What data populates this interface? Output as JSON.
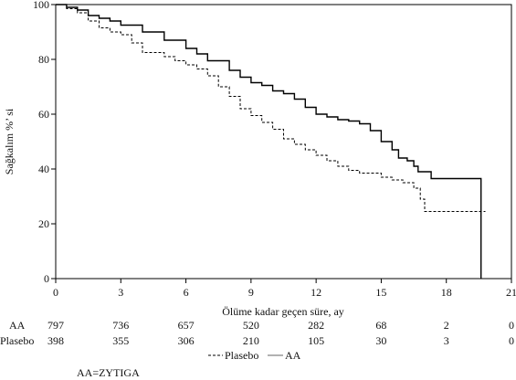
{
  "chart_data": {
    "type": "line",
    "title": "",
    "xlabel": "Ölüme kadar geçen süre, ay",
    "ylabel": "Sağkalım %’ si",
    "xlim": [
      0,
      21
    ],
    "ylim": [
      0,
      100
    ],
    "x_ticks": [
      "0",
      "3",
      "6",
      "9",
      "12",
      "15",
      "18",
      "21"
    ],
    "y_ticks": [
      "0",
      "20",
      "40",
      "60",
      "80",
      "100"
    ],
    "grid": false,
    "series": [
      {
        "name": "AA",
        "line_style": "solid",
        "color": "#000000",
        "points": [
          [
            0,
            100
          ],
          [
            0.5,
            99
          ],
          [
            1,
            98
          ],
          [
            1.5,
            96
          ],
          [
            2,
            95
          ],
          [
            2.5,
            94
          ],
          [
            3,
            92.5
          ],
          [
            4,
            90
          ],
          [
            5,
            87
          ],
          [
            6,
            84
          ],
          [
            6.5,
            82
          ],
          [
            7,
            79.5
          ],
          [
            8,
            76
          ],
          [
            8.5,
            73.5
          ],
          [
            9,
            71.5
          ],
          [
            9.5,
            70.5
          ],
          [
            10,
            68.5
          ],
          [
            10.5,
            67.5
          ],
          [
            11,
            65.5
          ],
          [
            11.5,
            62.5
          ],
          [
            12,
            60
          ],
          [
            12.5,
            59
          ],
          [
            13,
            58
          ],
          [
            13.5,
            57.5
          ],
          [
            14,
            56.5
          ],
          [
            14.5,
            54
          ],
          [
            15,
            50
          ],
          [
            15.5,
            47
          ],
          [
            15.8,
            44
          ],
          [
            16.2,
            43
          ],
          [
            16.5,
            41
          ],
          [
            16.7,
            39
          ],
          [
            17.3,
            39
          ],
          [
            17.3,
            36.5
          ],
          [
            19.6,
            36.5
          ],
          [
            19.6,
            0
          ]
        ]
      },
      {
        "name": "Plasebo",
        "line_style": "dashed",
        "color": "#000000",
        "points": [
          [
            0,
            100
          ],
          [
            0.5,
            98.5
          ],
          [
            1,
            97
          ],
          [
            1.5,
            94
          ],
          [
            2,
            91.5
          ],
          [
            2.5,
            90
          ],
          [
            3,
            89
          ],
          [
            3.5,
            86
          ],
          [
            4,
            82.5
          ],
          [
            5,
            81
          ],
          [
            5.5,
            79.5
          ],
          [
            6,
            78
          ],
          [
            6.5,
            76.5
          ],
          [
            7,
            74
          ],
          [
            7.5,
            70
          ],
          [
            8,
            66.5
          ],
          [
            8.5,
            62
          ],
          [
            9,
            59.5
          ],
          [
            9.5,
            57
          ],
          [
            10,
            54.5
          ],
          [
            10.5,
            51
          ],
          [
            11,
            49
          ],
          [
            11.5,
            47
          ],
          [
            12,
            45
          ],
          [
            12.5,
            43
          ],
          [
            13,
            41
          ],
          [
            13.5,
            39.5
          ],
          [
            14,
            38.5
          ],
          [
            15,
            37
          ],
          [
            15.5,
            36
          ],
          [
            16,
            35
          ],
          [
            16.5,
            33
          ],
          [
            16.8,
            29
          ],
          [
            17,
            24.5
          ],
          [
            19.8,
            24.5
          ]
        ]
      }
    ],
    "risk_table": {
      "timepoints": [
        0,
        3,
        6,
        9,
        12,
        15,
        18,
        21
      ],
      "rows": [
        {
          "label": "AA",
          "values": [
            "797",
            "736",
            "657",
            "520",
            "282",
            "68",
            "2",
            "0"
          ]
        },
        {
          "label": "Plasebo",
          "values": [
            "398",
            "355",
            "306",
            "210",
            "105",
            "30",
            "3",
            "0"
          ]
        }
      ]
    },
    "legend": {
      "items": [
        {
          "label": "Plasebo",
          "line_style": "dashed"
        },
        {
          "label": "AA",
          "line_style": "solid"
        }
      ],
      "position": "bottom"
    },
    "footnote": "AA=ZYTIGA"
  }
}
